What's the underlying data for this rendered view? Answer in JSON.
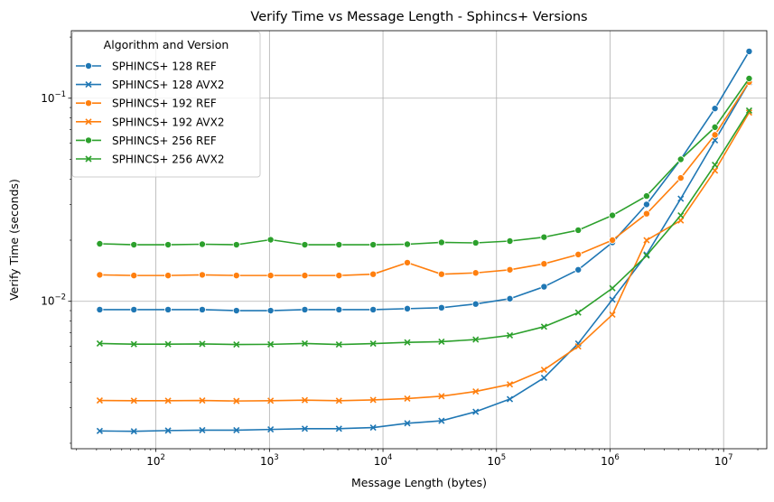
{
  "chart_data": {
    "type": "line",
    "title": "Verify Time vs Message Length - Sphincs+ Versions",
    "xlabel": "Message Length (bytes)",
    "ylabel": "Verify Time (seconds)",
    "x_scale": "log",
    "y_scale": "log",
    "xlim": [
      18,
      24000000
    ],
    "ylim": [
      0.00188,
      0.215
    ],
    "x_ticks": [
      {
        "value": 100,
        "base": "10",
        "exp": "2"
      },
      {
        "value": 1000,
        "base": "10",
        "exp": "3"
      },
      {
        "value": 10000,
        "base": "10",
        "exp": "4"
      },
      {
        "value": 100000,
        "base": "10",
        "exp": "5"
      },
      {
        "value": 1000000,
        "base": "10",
        "exp": "6"
      },
      {
        "value": 10000000,
        "base": "10",
        "exp": "7"
      }
    ],
    "y_ticks": [
      {
        "value": 0.01,
        "base": "10",
        "exp": "−2"
      },
      {
        "value": 0.1,
        "base": "10",
        "exp": "−1"
      }
    ],
    "grid": true,
    "legend": {
      "title": "Algorithm and Version",
      "placement": "top-left"
    },
    "x": [
      32,
      64,
      128,
      256,
      512,
      1024,
      2048,
      4096,
      8192,
      16384,
      32768,
      65536,
      131072,
      262144,
      524288,
      1048576,
      2097152,
      4194304,
      8388608,
      16777216
    ],
    "series": [
      {
        "name": "SPHINCS+ 128 REF",
        "color": "#1f77b4",
        "marker": "circle",
        "values": [
          0.0091,
          0.0091,
          0.0091,
          0.0091,
          0.009,
          0.009,
          0.0091,
          0.0091,
          0.0091,
          0.0092,
          0.0093,
          0.0097,
          0.0103,
          0.0118,
          0.0143,
          0.0195,
          0.03,
          0.05,
          0.089,
          0.17
        ]
      },
      {
        "name": "SPHINCS+ 128 AVX2",
        "color": "#1f77b4",
        "marker": "x",
        "values": [
          0.0023,
          0.00229,
          0.00231,
          0.00232,
          0.00232,
          0.00234,
          0.00236,
          0.00236,
          0.00239,
          0.00251,
          0.00258,
          0.00286,
          0.0033,
          0.0042,
          0.0062,
          0.0102,
          0.017,
          0.032,
          0.062,
          0.12
        ]
      },
      {
        "name": "SPHINCS+ 192 REF",
        "color": "#ff7f0e",
        "marker": "circle",
        "values": [
          0.0135,
          0.0134,
          0.0134,
          0.0135,
          0.0134,
          0.0134,
          0.0134,
          0.0134,
          0.0136,
          0.0155,
          0.0136,
          0.0138,
          0.0143,
          0.0153,
          0.017,
          0.02,
          0.027,
          0.0405,
          0.066,
          0.12
        ]
      },
      {
        "name": "SPHINCS+ 192 AVX2",
        "color": "#ff7f0e",
        "marker": "x",
        "values": [
          0.00325,
          0.00324,
          0.00324,
          0.00325,
          0.00323,
          0.00324,
          0.00326,
          0.00324,
          0.00327,
          0.00332,
          0.00341,
          0.0036,
          0.0039,
          0.0046,
          0.006,
          0.0086,
          0.02,
          0.025,
          0.044,
          0.085
        ]
      },
      {
        "name": "SPHINCS+ 256 REF",
        "color": "#2ca02c",
        "marker": "circle",
        "values": [
          0.0192,
          0.019,
          0.019,
          0.0191,
          0.019,
          0.0201,
          0.019,
          0.019,
          0.019,
          0.0191,
          0.0195,
          0.0194,
          0.0198,
          0.0207,
          0.0224,
          0.0265,
          0.033,
          0.05,
          0.072,
          0.125
        ]
      },
      {
        "name": "SPHINCS+ 256 AVX2",
        "color": "#2ca02c",
        "marker": "x",
        "values": [
          0.0062,
          0.00615,
          0.00615,
          0.00617,
          0.00613,
          0.00614,
          0.0062,
          0.00613,
          0.00619,
          0.00628,
          0.00633,
          0.00648,
          0.0068,
          0.0075,
          0.0088,
          0.0116,
          0.0168,
          0.0265,
          0.047,
          0.087
        ]
      }
    ]
  }
}
